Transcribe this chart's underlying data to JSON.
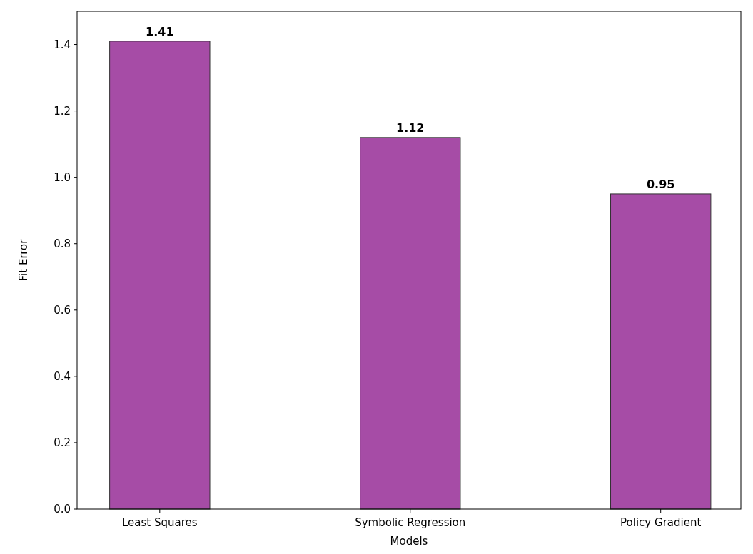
{
  "chart_data": {
    "type": "bar",
    "xlabel": "Models",
    "ylabel": "Fit Error",
    "categories": [
      "Least Squares",
      "Symbolic Regression",
      "Policy Gradient"
    ],
    "values": [
      1.41,
      1.12,
      0.95
    ],
    "color": "#a64ca6",
    "ylim": [
      0,
      1.5
    ],
    "yticks": [
      {
        "value": 0,
        "label": "0.0"
      },
      0.2,
      0.4,
      0.6,
      0.8,
      {
        "value": 1,
        "label": "1.0"
      },
      1.2,
      1.4
    ],
    "data_labels": true,
    "grid": false
  }
}
